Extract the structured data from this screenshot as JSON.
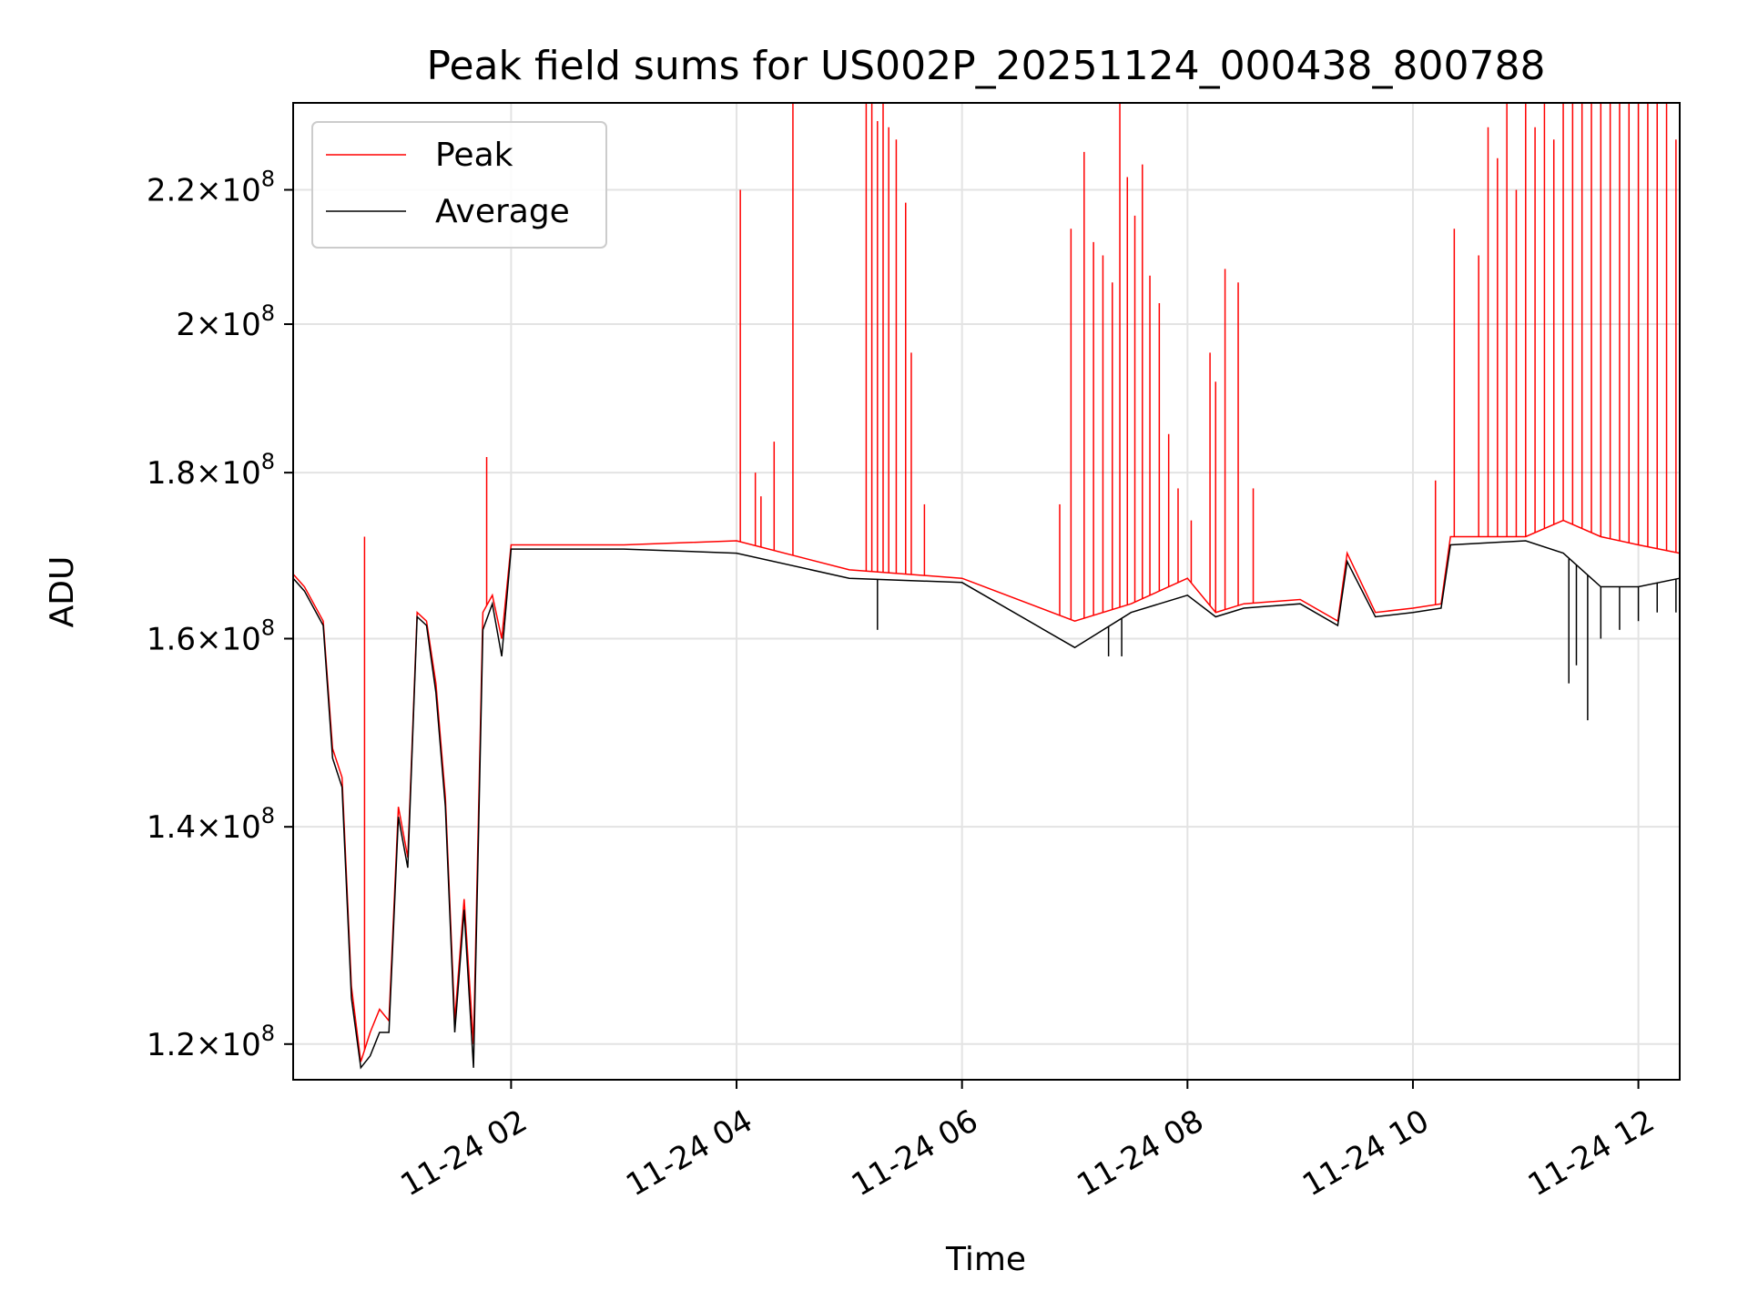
{
  "chart_data": {
    "type": "line",
    "title": "Peak field sums for US002P_20251124_000438_800788",
    "xlabel": "Time",
    "ylabel": "ADU",
    "y_scale": "log",
    "grid": true,
    "legend_position": "top-left",
    "xlim": [
      "2025-11-24 00:04",
      "2025-11-24 12:22"
    ],
    "ylim": [
      117000000,
      234000000
    ],
    "x_ticks": [
      {
        "value": "2025-11-24 02:00",
        "label": "11-24 02"
      },
      {
        "value": "2025-11-24 04:00",
        "label": "11-24 04"
      },
      {
        "value": "2025-11-24 06:00",
        "label": "11-24 06"
      },
      {
        "value": "2025-11-24 08:00",
        "label": "11-24 08"
      },
      {
        "value": "2025-11-24 10:00",
        "label": "11-24 10"
      },
      {
        "value": "2025-11-24 12:00",
        "label": "11-24 12"
      }
    ],
    "y_ticks": [
      {
        "value": 120000000,
        "mantissa": "1.2",
        "exponent": "8"
      },
      {
        "value": 140000000,
        "mantissa": "1.4",
        "exponent": "8"
      },
      {
        "value": 160000000,
        "mantissa": "1.6",
        "exponent": "8"
      },
      {
        "value": 180000000,
        "mantissa": "1.8",
        "exponent": "8"
      },
      {
        "value": 200000000,
        "mantissa": "2",
        "exponent": "8"
      },
      {
        "value": 220000000,
        "mantissa": "2.2",
        "exponent": "8"
      }
    ],
    "series": [
      {
        "name": "Peak",
        "color": "#ff0000",
        "baseline": [
          [
            "2025-11-24 00:04",
            167500000
          ],
          [
            "2025-11-24 00:10",
            166000000
          ],
          [
            "2025-11-24 00:20",
            162000000
          ],
          [
            "2025-11-24 00:25",
            148000000
          ],
          [
            "2025-11-24 00:30",
            145000000
          ],
          [
            "2025-11-24 00:35",
            125000000
          ],
          [
            "2025-11-24 00:40",
            118500000
          ],
          [
            "2025-11-24 00:45",
            121000000
          ],
          [
            "2025-11-24 00:50",
            123000000
          ],
          [
            "2025-11-24 00:55",
            122000000
          ],
          [
            "2025-11-24 01:00",
            142000000
          ],
          [
            "2025-11-24 01:05",
            137000000
          ],
          [
            "2025-11-24 01:10",
            163000000
          ],
          [
            "2025-11-24 01:15",
            162000000
          ],
          [
            "2025-11-24 01:20",
            155000000
          ],
          [
            "2025-11-24 01:25",
            143000000
          ],
          [
            "2025-11-24 01:30",
            122000000
          ],
          [
            "2025-11-24 01:35",
            133000000
          ],
          [
            "2025-11-24 01:40",
            120000000
          ],
          [
            "2025-11-24 01:45",
            163000000
          ],
          [
            "2025-11-24 01:50",
            165000000
          ],
          [
            "2025-11-24 01:55",
            160000000
          ],
          [
            "2025-11-24 02:00",
            171000000
          ],
          [
            "2025-11-24 03:00",
            171000000
          ],
          [
            "2025-11-24 04:00",
            171500000
          ],
          [
            "2025-11-24 05:00",
            168000000
          ],
          [
            "2025-11-24 06:00",
            167000000
          ],
          [
            "2025-11-24 07:00",
            162000000
          ],
          [
            "2025-11-24 07:30",
            164000000
          ],
          [
            "2025-11-24 08:00",
            167000000
          ],
          [
            "2025-11-24 08:15",
            163000000
          ],
          [
            "2025-11-24 08:30",
            164000000
          ],
          [
            "2025-11-24 09:00",
            164500000
          ],
          [
            "2025-11-24 09:20",
            162000000
          ],
          [
            "2025-11-24 09:25",
            170000000
          ],
          [
            "2025-11-24 09:40",
            163000000
          ],
          [
            "2025-11-24 10:00",
            163500000
          ],
          [
            "2025-11-24 10:15",
            164000000
          ],
          [
            "2025-11-24 10:20",
            172000000
          ],
          [
            "2025-11-24 11:00",
            172000000
          ],
          [
            "2025-11-24 11:20",
            174000000
          ],
          [
            "2025-11-24 11:40",
            172000000
          ],
          [
            "2025-11-24 12:00",
            171000000
          ],
          [
            "2025-11-24 12:22",
            170000000
          ]
        ],
        "spikes": [
          [
            "2025-11-24 00:42",
            172000000
          ],
          [
            "2025-11-24 01:47",
            182000000
          ],
          [
            "2025-11-24 04:02",
            220000000
          ],
          [
            "2025-11-24 04:10",
            180000000
          ],
          [
            "2025-11-24 04:13",
            177000000
          ],
          [
            "2025-11-24 04:20",
            184000000
          ],
          [
            "2025-11-24 04:30",
            234000000
          ],
          [
            "2025-11-24 05:09",
            234000000
          ],
          [
            "2025-11-24 05:12",
            234000000
          ],
          [
            "2025-11-24 05:15",
            231000000
          ],
          [
            "2025-11-24 05:18",
            234000000
          ],
          [
            "2025-11-24 05:21",
            230000000
          ],
          [
            "2025-11-24 05:25",
            228000000
          ],
          [
            "2025-11-24 05:30",
            218000000
          ],
          [
            "2025-11-24 05:33",
            196000000
          ],
          [
            "2025-11-24 05:40",
            176000000
          ],
          [
            "2025-11-24 06:52",
            176000000
          ],
          [
            "2025-11-24 06:58",
            214000000
          ],
          [
            "2025-11-24 07:05",
            226000000
          ],
          [
            "2025-11-24 07:10",
            212000000
          ],
          [
            "2025-11-24 07:15",
            210000000
          ],
          [
            "2025-11-24 07:20",
            206000000
          ],
          [
            "2025-11-24 07:24",
            234000000
          ],
          [
            "2025-11-24 07:28",
            222000000
          ],
          [
            "2025-11-24 07:32",
            216000000
          ],
          [
            "2025-11-24 07:36",
            224000000
          ],
          [
            "2025-11-24 07:40",
            207000000
          ],
          [
            "2025-11-24 07:45",
            203000000
          ],
          [
            "2025-11-24 07:50",
            185000000
          ],
          [
            "2025-11-24 07:55",
            178000000
          ],
          [
            "2025-11-24 08:02",
            174000000
          ],
          [
            "2025-11-24 08:12",
            196000000
          ],
          [
            "2025-11-24 08:15",
            192000000
          ],
          [
            "2025-11-24 08:20",
            208000000
          ],
          [
            "2025-11-24 08:27",
            206000000
          ],
          [
            "2025-11-24 08:35",
            178000000
          ],
          [
            "2025-11-24 10:12",
            179000000
          ],
          [
            "2025-11-24 10:22",
            214000000
          ],
          [
            "2025-11-24 10:35",
            210000000
          ],
          [
            "2025-11-24 10:40",
            230000000
          ],
          [
            "2025-11-24 10:45",
            225000000
          ],
          [
            "2025-11-24 10:50",
            234000000
          ],
          [
            "2025-11-24 10:55",
            220000000
          ],
          [
            "2025-11-24 11:00",
            234000000
          ],
          [
            "2025-11-24 11:05",
            230000000
          ],
          [
            "2025-11-24 11:10",
            234000000
          ],
          [
            "2025-11-24 11:15",
            228000000
          ],
          [
            "2025-11-24 11:20",
            234000000
          ],
          [
            "2025-11-24 11:25",
            234000000
          ],
          [
            "2025-11-24 11:30",
            234000000
          ],
          [
            "2025-11-24 11:35",
            234000000
          ],
          [
            "2025-11-24 11:40",
            234000000
          ],
          [
            "2025-11-24 11:45",
            234000000
          ],
          [
            "2025-11-24 11:50",
            234000000
          ],
          [
            "2025-11-24 11:55",
            234000000
          ],
          [
            "2025-11-24 12:00",
            234000000
          ],
          [
            "2025-11-24 12:05",
            234000000
          ],
          [
            "2025-11-24 12:10",
            234000000
          ],
          [
            "2025-11-24 12:15",
            234000000
          ],
          [
            "2025-11-24 12:20",
            228000000
          ]
        ]
      },
      {
        "name": "Average",
        "color": "#000000",
        "baseline": [
          [
            "2025-11-24 00:04",
            167000000
          ],
          [
            "2025-11-24 00:10",
            165500000
          ],
          [
            "2025-11-24 00:20",
            161500000
          ],
          [
            "2025-11-24 00:25",
            147000000
          ],
          [
            "2025-11-24 00:30",
            144000000
          ],
          [
            "2025-11-24 00:35",
            124000000
          ],
          [
            "2025-11-24 00:40",
            118000000
          ],
          [
            "2025-11-24 00:45",
            119000000
          ],
          [
            "2025-11-24 00:50",
            121000000
          ],
          [
            "2025-11-24 00:55",
            121000000
          ],
          [
            "2025-11-24 01:00",
            141000000
          ],
          [
            "2025-11-24 01:05",
            136000000
          ],
          [
            "2025-11-24 01:10",
            162500000
          ],
          [
            "2025-11-24 01:15",
            161500000
          ],
          [
            "2025-11-24 01:20",
            154000000
          ],
          [
            "2025-11-24 01:25",
            142000000
          ],
          [
            "2025-11-24 01:30",
            121000000
          ],
          [
            "2025-11-24 01:35",
            132000000
          ],
          [
            "2025-11-24 01:40",
            118000000
          ],
          [
            "2025-11-24 01:45",
            161000000
          ],
          [
            "2025-11-24 01:50",
            164000000
          ],
          [
            "2025-11-24 01:55",
            158000000
          ],
          [
            "2025-11-24 02:00",
            170500000
          ],
          [
            "2025-11-24 03:00",
            170500000
          ],
          [
            "2025-11-24 04:00",
            170000000
          ],
          [
            "2025-11-24 05:00",
            167000000
          ],
          [
            "2025-11-24 06:00",
            166500000
          ],
          [
            "2025-11-24 07:00",
            159000000
          ],
          [
            "2025-11-24 07:30",
            163000000
          ],
          [
            "2025-11-24 08:00",
            165000000
          ],
          [
            "2025-11-24 08:15",
            162500000
          ],
          [
            "2025-11-24 08:30",
            163500000
          ],
          [
            "2025-11-24 09:00",
            164000000
          ],
          [
            "2025-11-24 09:20",
            161500000
          ],
          [
            "2025-11-24 09:25",
            169000000
          ],
          [
            "2025-11-24 09:40",
            162500000
          ],
          [
            "2025-11-24 10:00",
            163000000
          ],
          [
            "2025-11-24 10:15",
            163500000
          ],
          [
            "2025-11-24 10:20",
            171000000
          ],
          [
            "2025-11-24 11:00",
            171500000
          ],
          [
            "2025-11-24 11:20",
            170000000
          ],
          [
            "2025-11-24 11:40",
            166000000
          ],
          [
            "2025-11-24 12:00",
            166000000
          ],
          [
            "2025-11-24 12:22",
            167000000
          ]
        ],
        "spikes": [
          [
            "2025-11-24 05:15",
            161000000
          ],
          [
            "2025-11-24 07:18",
            158000000
          ],
          [
            "2025-11-24 07:25",
            158000000
          ],
          [
            "2025-11-24 11:23",
            155000000
          ],
          [
            "2025-11-24 11:27",
            157000000
          ],
          [
            "2025-11-24 11:33",
            151000000
          ],
          [
            "2025-11-24 11:40",
            160000000
          ],
          [
            "2025-11-24 11:50",
            161000000
          ],
          [
            "2025-11-24 12:00",
            162000000
          ],
          [
            "2025-11-24 12:10",
            163000000
          ],
          [
            "2025-11-24 12:20",
            163000000
          ]
        ]
      }
    ]
  }
}
